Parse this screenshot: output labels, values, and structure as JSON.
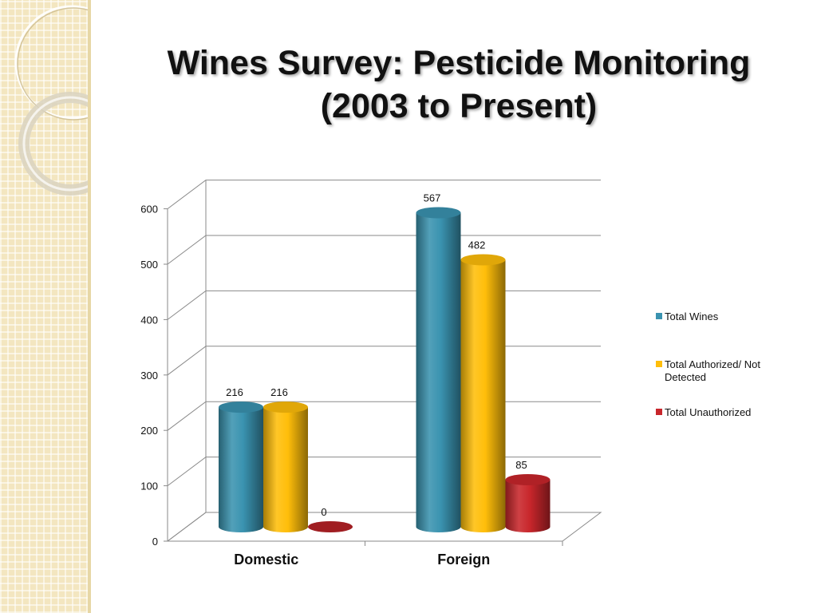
{
  "slide": {
    "title_line1": "Wines Survey: Pesticide Monitoring",
    "title_line2": "(2003 to Present)"
  },
  "chart_data": {
    "type": "bar",
    "style": "3d-cylinder",
    "categories": [
      "Domestic",
      "Foreign"
    ],
    "series": [
      {
        "name": "Total Wines",
        "values": [
          216,
          567
        ],
        "color": "#3a93b0"
      },
      {
        "name": "Total Authorized/ Not Detected",
        "values": [
          216,
          482
        ],
        "color": "#ffbe0a"
      },
      {
        "name": "Total Unauthorized",
        "values": [
          0,
          85
        ],
        "color": "#c8262b"
      }
    ],
    "yticks": [
      0,
      100,
      200,
      300,
      400,
      500,
      600
    ],
    "ylim": [
      0,
      600
    ],
    "grid": true,
    "legend_position": "right",
    "title": "",
    "xlabel": "",
    "ylabel": ""
  }
}
